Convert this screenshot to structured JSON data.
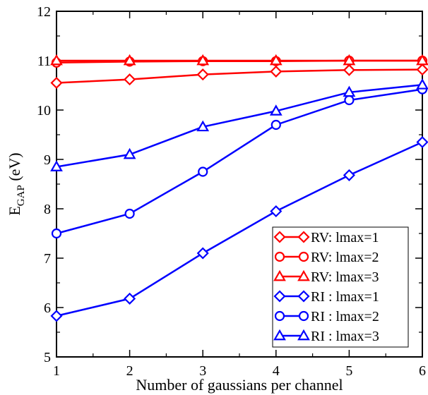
{
  "chart_data": {
    "type": "line",
    "xlabel": "Number of gaussians per channel",
    "ylabel": {
      "main": "E",
      "sub": "GAP",
      "unit": " (eV)"
    },
    "xlim": [
      1,
      6
    ],
    "ylim": [
      5,
      12
    ],
    "x_ticks": [
      1,
      2,
      3,
      4,
      5,
      6
    ],
    "y_ticks": [
      5,
      6,
      7,
      8,
      9,
      10,
      11,
      12
    ],
    "grid": false,
    "legend_position": "bottom-right",
    "x": [
      1,
      2,
      3,
      4,
      5,
      6
    ],
    "series": [
      {
        "name": "RV: lmax=1",
        "color": "#ff0000",
        "marker": "diamond",
        "values": [
          10.55,
          10.62,
          10.72,
          10.78,
          10.81,
          10.82
        ]
      },
      {
        "name": "RV: lmax=2",
        "color": "#ff0000",
        "marker": "circle",
        "values": [
          10.96,
          10.98,
          10.99,
          10.99,
          11.0,
          11.0
        ]
      },
      {
        "name": "RV: lmax=3",
        "color": "#ff0000",
        "marker": "triangle",
        "values": [
          11.0,
          11.0,
          11.0,
          11.0,
          11.0,
          11.0
        ]
      },
      {
        "name": "RI : lmax=1",
        "color": "#0000ff",
        "marker": "diamond",
        "values": [
          5.83,
          6.18,
          7.1,
          7.95,
          8.68,
          9.35
        ]
      },
      {
        "name": "RI : lmax=2",
        "color": "#0000ff",
        "marker": "circle",
        "values": [
          7.5,
          7.9,
          8.75,
          9.7,
          10.2,
          10.42
        ]
      },
      {
        "name": "RI : lmax=3",
        "color": "#0000ff",
        "marker": "triangle",
        "values": [
          8.85,
          9.1,
          9.66,
          9.98,
          10.36,
          10.51
        ]
      }
    ]
  }
}
